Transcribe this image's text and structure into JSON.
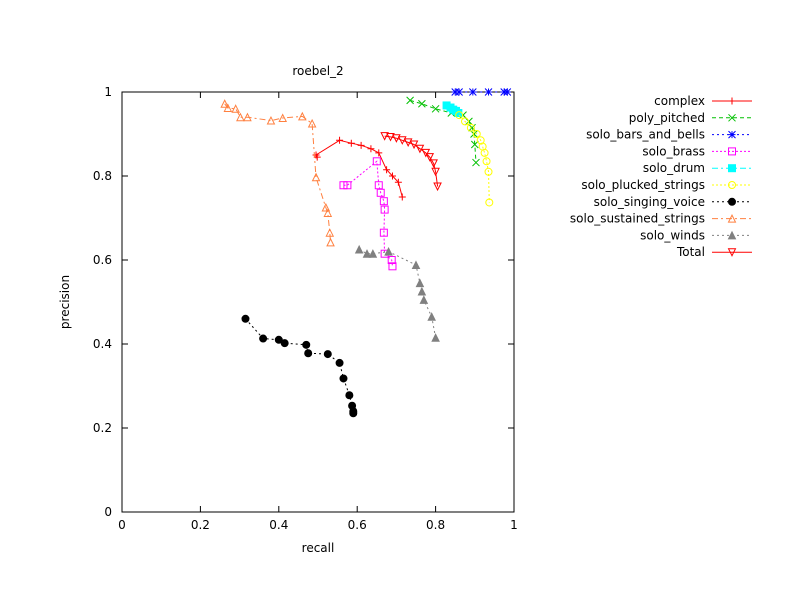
{
  "chart_data": {
    "type": "line",
    "title": "roebel_2",
    "xlabel": "recall",
    "ylabel": "precision",
    "xlim": [
      0,
      1
    ],
    "ylim": [
      0,
      1
    ],
    "xticks": [
      "0",
      "0.2",
      "0.4",
      "0.6",
      "0.8",
      "1"
    ],
    "yticks": [
      "0",
      "0.2",
      "0.4",
      "0.6",
      "0.8",
      "1"
    ],
    "grid": false,
    "legend_position": "right, outside plot",
    "series": [
      {
        "name": "complex",
        "color": "#ff0000",
        "marker": "plus",
        "dash": "",
        "x": [
          0.498,
          0.495,
          0.555,
          0.585,
          0.61,
          0.635,
          0.655,
          0.675,
          0.69,
          0.705,
          0.715
        ],
        "y": [
          0.845,
          0.85,
          0.885,
          0.878,
          0.873,
          0.865,
          0.855,
          0.815,
          0.8,
          0.785,
          0.75
        ]
      },
      {
        "name": "poly_pitched",
        "color": "#00c000",
        "marker": "x",
        "dash": "4,3",
        "x": [
          0.735,
          0.765,
          0.8,
          0.84,
          0.87,
          0.885,
          0.893,
          0.898,
          0.9,
          0.903
        ],
        "y": [
          0.98,
          0.972,
          0.96,
          0.95,
          0.945,
          0.93,
          0.915,
          0.9,
          0.875,
          0.832
        ]
      },
      {
        "name": "solo_bars_and_bells",
        "color": "#0000ff",
        "marker": "star",
        "dash": "2,3",
        "x": [
          0.85,
          0.86,
          0.895,
          0.935,
          0.975,
          0.983
        ],
        "y": [
          1,
          1,
          1,
          1,
          1,
          1
        ]
      },
      {
        "name": "solo_brass",
        "color": "#ff00ff",
        "marker": "square",
        "dash": "2,2",
        "x": [
          0.565,
          0.575,
          0.65,
          0.655,
          0.66,
          0.668,
          0.67,
          0.668,
          0.67,
          0.688,
          0.69
        ],
        "y": [
          0.778,
          0.778,
          0.835,
          0.778,
          0.76,
          0.74,
          0.72,
          0.665,
          0.615,
          0.6,
          0.585
        ]
      },
      {
        "name": "solo_drum",
        "color": "#00ffff",
        "marker": "filled-square",
        "dash": "6,3,2,3",
        "x": [
          0.828,
          0.838,
          0.845,
          0.852,
          0.858
        ],
        "y": [
          0.968,
          0.963,
          0.958,
          0.955,
          0.95
        ]
      },
      {
        "name": "solo_plucked_strings",
        "color": "#ffff00",
        "marker": "circle",
        "dash": "2,2",
        "x": [
          0.86,
          0.875,
          0.89,
          0.905,
          0.915,
          0.92,
          0.925,
          0.93,
          0.935,
          0.937
        ],
        "y": [
          0.945,
          0.93,
          0.915,
          0.9,
          0.885,
          0.87,
          0.855,
          0.835,
          0.81,
          0.737
        ]
      },
      {
        "name": "solo_singing_voice",
        "color": "#000000",
        "marker": "filled-circle",
        "dash": "2,3",
        "x": [
          0.315,
          0.36,
          0.4,
          0.415,
          0.47,
          0.475,
          0.525,
          0.555,
          0.565,
          0.58,
          0.587,
          0.59,
          0.59
        ],
        "y": [
          0.46,
          0.413,
          0.41,
          0.402,
          0.398,
          0.378,
          0.376,
          0.355,
          0.318,
          0.278,
          0.253,
          0.24,
          0.235
        ]
      },
      {
        "name": "solo_sustained_strings",
        "color": "#ff8040",
        "marker": "triangle",
        "dash": "6,3,2,3",
        "x": [
          0.262,
          0.27,
          0.29,
          0.302,
          0.32,
          0.38,
          0.41,
          0.46,
          0.485,
          0.495,
          0.52,
          0.525,
          0.53,
          0.532
        ],
        "y": [
          0.972,
          0.962,
          0.96,
          0.94,
          0.94,
          0.932,
          0.938,
          0.942,
          0.925,
          0.797,
          0.725,
          0.712,
          0.665,
          0.642
        ]
      },
      {
        "name": "solo_winds",
        "color": "#808080",
        "marker": "filled-triangle",
        "dash": "2,3",
        "x": [
          0.605,
          0.625,
          0.64,
          0.68,
          0.75,
          0.76,
          0.765,
          0.77,
          0.79,
          0.8
        ],
        "y": [
          0.625,
          0.615,
          0.615,
          0.62,
          0.588,
          0.545,
          0.525,
          0.505,
          0.465,
          0.415
        ]
      },
      {
        "name": "Total",
        "color": "#ff0000",
        "marker": "down-triangle",
        "dash": "",
        "x": [
          0.67,
          0.685,
          0.7,
          0.715,
          0.73,
          0.745,
          0.76,
          0.775,
          0.785,
          0.795,
          0.8,
          0.805
        ],
        "y": [
          0.895,
          0.893,
          0.89,
          0.885,
          0.88,
          0.875,
          0.865,
          0.855,
          0.845,
          0.83,
          0.81,
          0.775
        ]
      }
    ]
  }
}
